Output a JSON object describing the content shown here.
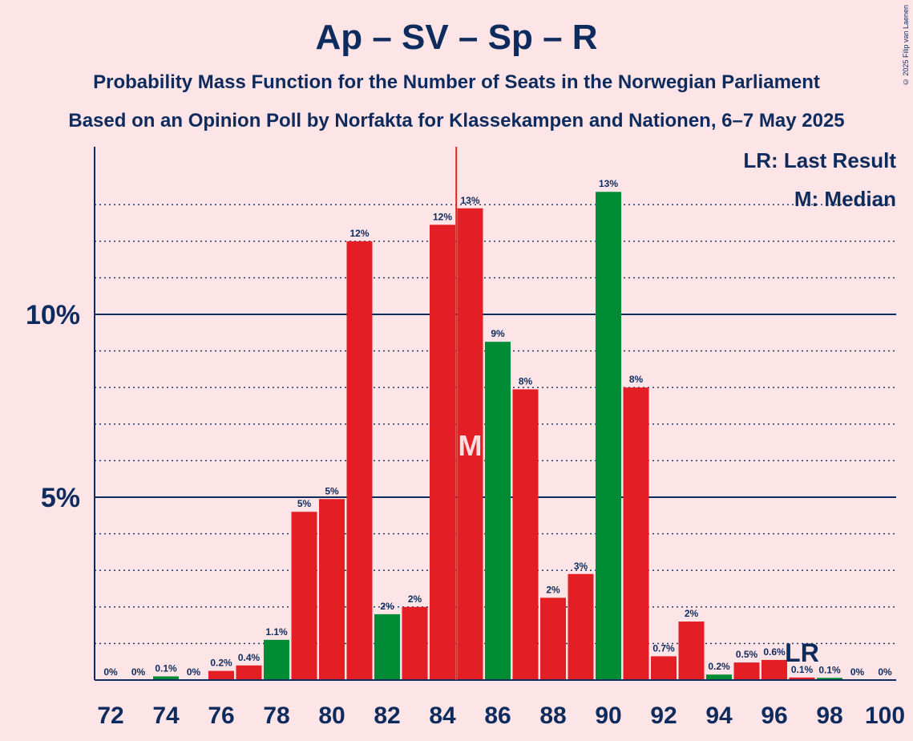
{
  "title": "Ap – SV – Sp – R",
  "subtitle1": "Probability Mass Function for the Number of Seats in the Norwegian Parliament",
  "subtitle2": "Based on an Opinion Poll by Norfakta for Klassekampen and Nationen, 6–7 May 2025",
  "copyright": "© 2025 Filip van Laenen",
  "legend": {
    "last_result": "LR: Last Result",
    "median": "M: Median"
  },
  "colors": {
    "red": "#e31e24",
    "green": "#008b35",
    "median_line": "#e31e24",
    "text": "#0d2b5c",
    "background": "#fde4e6"
  },
  "chart_data": {
    "type": "bar",
    "x": [
      72,
      73,
      74,
      75,
      76,
      77,
      78,
      79,
      80,
      81,
      82,
      83,
      84,
      85,
      86,
      87,
      88,
      89,
      90,
      91,
      92,
      93,
      94,
      95,
      96,
      97,
      98,
      99,
      100
    ],
    "values": [
      0,
      0,
      0.1,
      0,
      0.25,
      0.4,
      1.1,
      4.6,
      4.95,
      12.0,
      1.8,
      2.0,
      12.45,
      12.9,
      9.25,
      7.95,
      2.25,
      2.9,
      13.35,
      8.0,
      0.65,
      1.6,
      0.15,
      0.48,
      0.55,
      0.07,
      0.06,
      0,
      0
    ],
    "labels": [
      "0%",
      "0%",
      "0.1%",
      "0%",
      "0.2%",
      "0.4%",
      "1.1%",
      "5%",
      "5%",
      "12%",
      "2%",
      "2%",
      "12%",
      "13%",
      "9%",
      "8%",
      "2%",
      "3%",
      "13%",
      "8%",
      "0.7%",
      "2%",
      "0.2%",
      "0.5%",
      "0.6%",
      "0.1%",
      "0.1%",
      "0%",
      "0%"
    ],
    "bar_colors": [
      "red",
      "red",
      "green",
      "red",
      "red",
      "red",
      "green",
      "red",
      "red",
      "red",
      "green",
      "red",
      "red",
      "red",
      "green",
      "red",
      "red",
      "red",
      "green",
      "red",
      "red",
      "red",
      "green",
      "red",
      "red",
      "red",
      "green",
      "red",
      "red"
    ],
    "x_tick_labels": [
      "72",
      "74",
      "76",
      "78",
      "80",
      "82",
      "84",
      "86",
      "88",
      "90",
      "92",
      "94",
      "96",
      "98",
      "100"
    ],
    "y_tick_labels": [
      {
        "value": 5,
        "label": "5%"
      },
      {
        "value": 10,
        "label": "10%"
      }
    ],
    "ylim": [
      0,
      14.6
    ],
    "median": 85,
    "median_label": "M",
    "last_result": 97,
    "last_result_label": "LR",
    "grid": "dotted lines every 1%, solid at 5% and 10%"
  }
}
